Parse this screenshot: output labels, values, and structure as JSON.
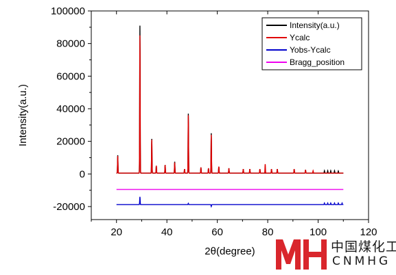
{
  "chart_data": {
    "type": "line",
    "xlabel": "2θ(degree)",
    "ylabel": "Intensity(a.u.)",
    "xlim": [
      10,
      120
    ],
    "ylim": [
      -28000,
      100000
    ],
    "x_ticks": [
      20,
      40,
      60,
      80,
      100,
      120
    ],
    "y_ticks": [
      -20000,
      0,
      20000,
      40000,
      60000,
      80000,
      100000
    ],
    "x_tick_labels": [
      "20",
      "40",
      "60",
      "80",
      "100",
      "120"
    ],
    "y_tick_labels": [
      "-20000",
      "0",
      "20000",
      "40000",
      "60000",
      "80000",
      "100000"
    ],
    "legend_position": "top-right",
    "legend": [
      {
        "label": "Intensity(a.u.)",
        "color": "#000000"
      },
      {
        "label": "Ycalc",
        "color": "#e00000"
      },
      {
        "label": "Yobs-Ycalc",
        "color": "#0000cc"
      },
      {
        "label": "Bragg_position",
        "color": "#ee00ee"
      }
    ],
    "series": [
      {
        "name": "Intensity(a.u.)",
        "color": "#000000",
        "x_range": [
          20,
          110
        ],
        "baseline": 500,
        "peaks": [
          [
            20.5,
            11500
          ],
          [
            29.3,
            91000
          ],
          [
            34.0,
            21500
          ],
          [
            35.8,
            5000
          ],
          [
            39.3,
            5500
          ],
          [
            43.1,
            7500
          ],
          [
            47.0,
            3000
          ],
          [
            48.5,
            37000
          ],
          [
            53.5,
            4000
          ],
          [
            56.5,
            3500
          ],
          [
            57.6,
            25000
          ],
          [
            60.6,
            4500
          ],
          [
            64.6,
            3500
          ],
          [
            70.3,
            3000
          ],
          [
            72.9,
            3000
          ],
          [
            76.9,
            3000
          ],
          [
            81.5,
            3000
          ],
          [
            83.8,
            3000
          ],
          [
            90.5,
            3000
          ],
          [
            95.0,
            2500
          ],
          [
            102.5,
            2000
          ],
          [
            103.8,
            2000
          ],
          [
            105.0,
            2000
          ],
          [
            106.5,
            2000
          ],
          [
            108.0,
            1800
          ]
        ]
      },
      {
        "name": "Ycalc",
        "color": "#e00000",
        "x_range": [
          20,
          110
        ],
        "baseline": 500,
        "peaks": [
          [
            20.5,
            11000
          ],
          [
            29.3,
            85000
          ],
          [
            34.0,
            21000
          ],
          [
            35.8,
            5000
          ],
          [
            39.3,
            5500
          ],
          [
            43.1,
            7000
          ],
          [
            47.0,
            3000
          ],
          [
            48.5,
            36000
          ],
          [
            53.5,
            4000
          ],
          [
            56.5,
            3500
          ],
          [
            57.6,
            24000
          ],
          [
            60.6,
            4500
          ],
          [
            64.6,
            3500
          ],
          [
            70.3,
            3000
          ],
          [
            72.9,
            3000
          ],
          [
            76.9,
            3000
          ],
          [
            79.0,
            6000
          ],
          [
            81.5,
            3000
          ],
          [
            83.8,
            3000
          ],
          [
            90.5,
            3000
          ],
          [
            95.0,
            2500
          ],
          [
            98.0,
            2000
          ]
        ]
      },
      {
        "name": "Yobs-Ycalc",
        "color": "#0000cc",
        "x_range": [
          20,
          110
        ],
        "baseline": -18800,
        "peaks": [
          [
            29.3,
            -14000
          ],
          [
            48.5,
            -18000
          ],
          [
            57.6,
            -20000
          ],
          [
            102.5,
            -17800
          ],
          [
            103.8,
            -17800
          ],
          [
            105.0,
            -17800
          ],
          [
            106.5,
            -17800
          ],
          [
            108.0,
            -17800
          ],
          [
            109.5,
            -17800
          ]
        ]
      },
      {
        "name": "Bragg_position",
        "color": "#ee00ee",
        "x_range": [
          20,
          110
        ],
        "baseline": -9500,
        "peaks": []
      }
    ]
  },
  "watermark": {
    "logo_text": "MH",
    "cn_text": "中国煤化工",
    "en_text": "CNMHG",
    "color": "#d9262c"
  }
}
